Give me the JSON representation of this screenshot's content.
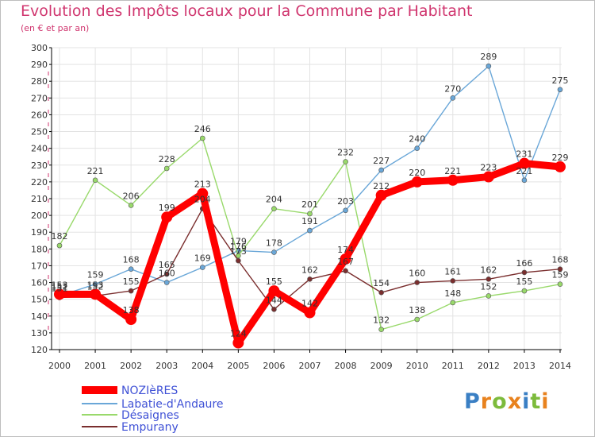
{
  "header": {
    "title": "Evolution des Impôts locaux pour la Commune par Habitant",
    "subtitle": "(en € et par an)"
  },
  "logo": {
    "letters": [
      "P",
      "r",
      "o",
      "x",
      "i",
      "t",
      "i"
    ],
    "colors": [
      "#3a7fc4",
      "#e8821e",
      "#7dbb3c",
      "#e8821e",
      "#3a7fc4",
      "#7dbb3c",
      "#e8821e"
    ]
  },
  "chart_data": {
    "type": "line",
    "title": "Evolution des Impôts locaux pour la Commune par Habitant",
    "subtitle": "(en € et par an)",
    "x": [
      2000,
      2001,
      2002,
      2003,
      2004,
      2005,
      2006,
      2007,
      2008,
      2009,
      2010,
      2011,
      2012,
      2013,
      2014
    ],
    "ylim": [
      120,
      300
    ],
    "yticks": [
      120,
      130,
      140,
      150,
      160,
      170,
      180,
      190,
      200,
      210,
      220,
      230,
      240,
      250,
      260,
      270,
      280,
      290,
      300
    ],
    "grid": true,
    "legend_position": "bottom-left",
    "series": [
      {
        "name": "NOZIèRES",
        "color": "#ff0000",
        "values": [
          153,
          153,
          138,
          199,
          213,
          124,
          155,
          142,
          174,
          212,
          220,
          221,
          223,
          231,
          229
        ],
        "labels": [
          "153",
          "153",
          "138",
          "199",
          "213",
          "124",
          "155",
          "142",
          "174",
          "212",
          "220",
          "221",
          "223",
          "231",
          "229"
        ]
      },
      {
        "name": "Labatie-d'Andaure",
        "color": "#6aa7d8",
        "values": [
          152,
          159,
          168,
          160,
          169,
          179,
          178,
          191,
          203,
          227,
          240,
          270,
          289,
          221,
          275
        ],
        "labels": [
          "152",
          "159",
          "168",
          "160",
          "169",
          "179",
          "178",
          "191",
          "203",
          "227",
          "240",
          "270",
          "289",
          "221",
          "275"
        ]
      },
      {
        "name": "Désaignes",
        "color": "#99d96b",
        "values": [
          182,
          221,
          206,
          228,
          246,
          176,
          204,
          201,
          232,
          132,
          138,
          148,
          152,
          155,
          159
        ],
        "labels": [
          "182",
          "221",
          "206",
          "228",
          "246",
          "176",
          "204",
          "201",
          "232",
          "132",
          "138",
          "148",
          "152",
          "155",
          "159"
        ]
      },
      {
        "name": "Empurany",
        "color": "#7a2e2e",
        "values": [
          151,
          152,
          155,
          165,
          204,
          173,
          144,
          162,
          167,
          154,
          160,
          161,
          162,
          166,
          168
        ],
        "labels": [
          "151",
          "152",
          "155",
          "165",
          "204",
          "173",
          "144",
          "162",
          "167",
          "154",
          "160",
          "161",
          "162",
          "166",
          "168"
        ]
      }
    ]
  }
}
